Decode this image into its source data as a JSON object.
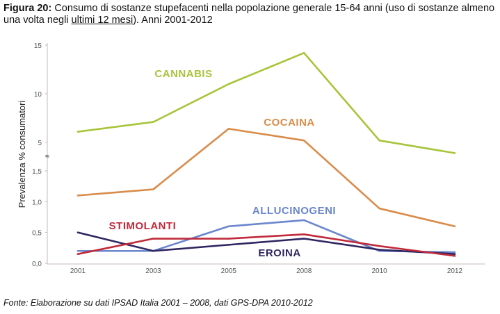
{
  "caption": {
    "figure": "Figura 20:",
    "text": " Consumo di sostanze stupefacenti nella popolazione generale 15-64 anni (uso di sostanze almeno una volta negli ",
    "underlined": "ultimi 12 mesi",
    "tail": "). Anni 2001-2012"
  },
  "source": "Fonte: Elaborazione su dati IPSAD Italia 2001 – 2008, dati GPS-DPA 2010-2012",
  "chart_data": {
    "type": "line",
    "title": "Consumo di sostanze stupefacenti nella popolazione generale 15-64 anni",
    "xlabel": "",
    "ylabel": "Prevalenza % consumatori",
    "categories": [
      "2001",
      "2003",
      "2005",
      "2008",
      "2010",
      "2012"
    ],
    "yticks": [
      "0,0",
      "0,5",
      "1,0",
      "1,5",
      "5",
      "10",
      "15"
    ],
    "axis_break": "≈",
    "ylim": [
      0,
      15
    ],
    "series": [
      {
        "name": "CANNABIS",
        "color": "#a8c43a",
        "values": [
          6.1,
          7.1,
          11.0,
          14.2,
          5.2,
          3.9
        ]
      },
      {
        "name": "COCAINA",
        "color": "#d98c4a",
        "values": [
          1.1,
          1.2,
          6.4,
          5.2,
          0.89,
          0.6
        ]
      },
      {
        "name": "ALLUCINOGENI",
        "color": "#6a86cc",
        "values": [
          0.2,
          0.2,
          0.6,
          0.7,
          0.2,
          0.18
        ]
      },
      {
        "name": "STIMOLANTI",
        "color": "#c02a3a",
        "values": [
          0.15,
          0.4,
          0.4,
          0.47,
          0.28,
          0.12
        ]
      },
      {
        "name": "EROINA",
        "color": "#2e2660",
        "values": [
          0.5,
          0.2,
          0.3,
          0.4,
          0.22,
          0.15
        ]
      }
    ]
  }
}
